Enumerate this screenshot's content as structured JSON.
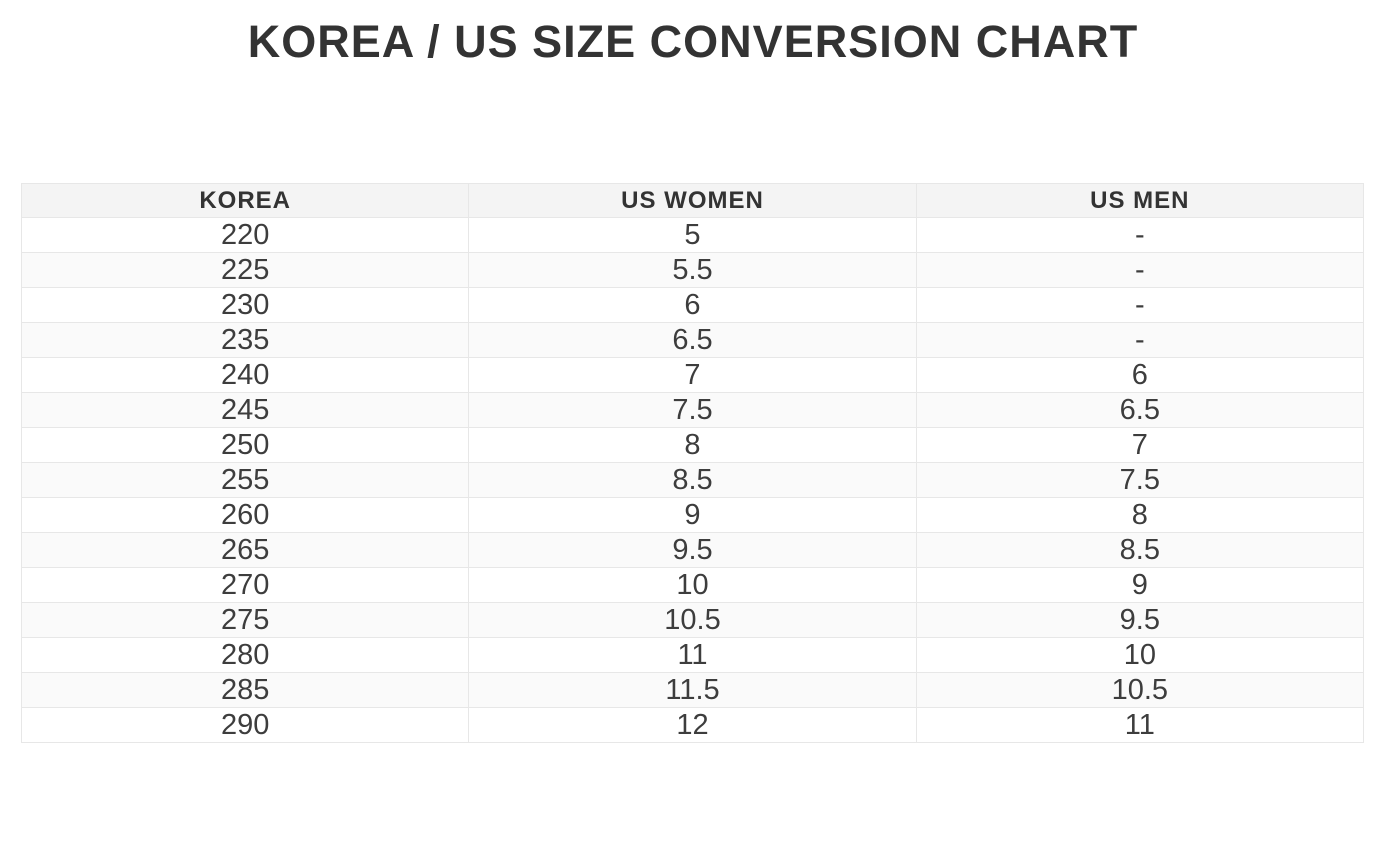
{
  "page": {
    "title": "KOREA / US SIZE CONVERSION CHART"
  },
  "colors": {
    "title_color": "#333333",
    "header_bg": "#f4f4f4",
    "header_text": "#333333",
    "cell_text": "#3d3d3d",
    "alt_row_bg": "#fafafa",
    "row_bg": "#ffffff",
    "border_color": "#e7e7e7",
    "page_bg": "#ffffff"
  },
  "chart_data": {
    "type": "table",
    "title": "KOREA / US SIZE CONVERSION CHART",
    "columns": [
      "KOREA",
      "US WOMEN",
      "US MEN"
    ],
    "rows": [
      [
        "220",
        "5",
        "-"
      ],
      [
        "225",
        "5.5",
        "-"
      ],
      [
        "230",
        "6",
        "-"
      ],
      [
        "235",
        "6.5",
        "-"
      ],
      [
        "240",
        "7",
        "6"
      ],
      [
        "245",
        "7.5",
        "6.5"
      ],
      [
        "250",
        "8",
        "7"
      ],
      [
        "255",
        "8.5",
        "7.5"
      ],
      [
        "260",
        "9",
        "8"
      ],
      [
        "265",
        "9.5",
        "8.5"
      ],
      [
        "270",
        "10",
        "9"
      ],
      [
        "275",
        "10.5",
        "9.5"
      ],
      [
        "280",
        "11",
        "10"
      ],
      [
        "285",
        "11.5",
        "10.5"
      ],
      [
        "290",
        "12",
        "11"
      ]
    ],
    "layout": {
      "zebra_striping": true,
      "first_data_row_bg": "white",
      "columns_equal_width": true,
      "text_align": "center"
    }
  }
}
